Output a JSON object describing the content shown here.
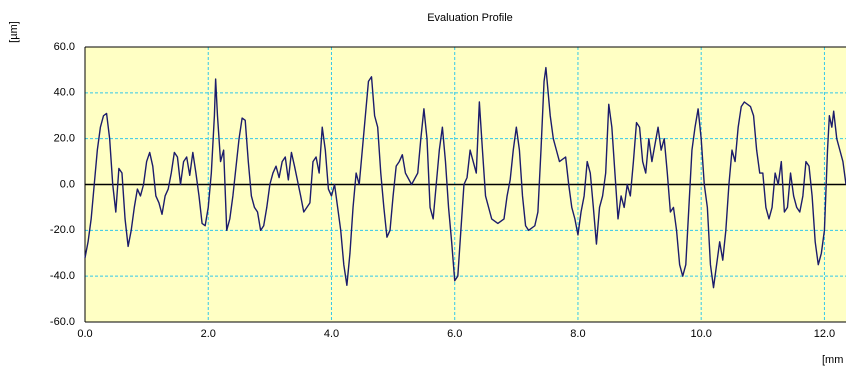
{
  "chart_data": {
    "type": "line",
    "title": "Evaluation Profile",
    "y_label": "[µm]",
    "x_label": "[mm",
    "x": [
      0.0,
      0.05,
      0.1,
      0.15,
      0.2,
      0.25,
      0.3,
      0.35,
      0.4,
      0.45,
      0.5,
      0.55,
      0.6,
      0.65,
      0.7,
      0.75,
      0.8,
      0.85,
      0.9,
      0.95,
      1.0,
      1.05,
      1.1,
      1.15,
      1.2,
      1.25,
      1.3,
      1.35,
      1.4,
      1.45,
      1.5,
      1.55,
      1.6,
      1.65,
      1.7,
      1.75,
      1.8,
      1.85,
      1.9,
      1.95,
      2.0,
      2.05,
      2.1,
      2.12,
      2.15,
      2.2,
      2.25,
      2.3,
      2.35,
      2.4,
      2.5,
      2.55,
      2.6,
      2.65,
      2.7,
      2.75,
      2.8,
      2.85,
      2.9,
      2.95,
      3.0,
      3.05,
      3.1,
      3.15,
      3.2,
      3.25,
      3.3,
      3.35,
      3.4,
      3.5,
      3.55,
      3.65,
      3.7,
      3.75,
      3.8,
      3.85,
      3.9,
      3.95,
      4.0,
      4.05,
      4.1,
      4.15,
      4.2,
      4.25,
      4.3,
      4.35,
      4.4,
      4.45,
      4.5,
      4.55,
      4.6,
      4.65,
      4.7,
      4.75,
      4.8,
      4.85,
      4.9,
      4.95,
      5.0,
      5.05,
      5.1,
      5.15,
      5.2,
      5.3,
      5.4,
      5.45,
      5.5,
      5.55,
      5.6,
      5.65,
      5.7,
      5.75,
      5.8,
      5.85,
      5.9,
      5.95,
      6.0,
      6.05,
      6.1,
      6.15,
      6.2,
      6.25,
      6.3,
      6.35,
      6.4,
      6.45,
      6.5,
      6.6,
      6.7,
      6.8,
      6.85,
      6.9,
      6.95,
      7.0,
      7.05,
      7.1,
      7.15,
      7.2,
      7.3,
      7.35,
      7.4,
      7.45,
      7.48,
      7.55,
      7.6,
      7.65,
      7.7,
      7.8,
      7.85,
      7.9,
      7.95,
      8.0,
      8.05,
      8.1,
      8.15,
      8.2,
      8.25,
      8.3,
      8.35,
      8.4,
      8.45,
      8.5,
      8.55,
      8.6,
      8.65,
      8.7,
      8.75,
      8.8,
      8.85,
      8.9,
      8.95,
      9.0,
      9.05,
      9.1,
      9.15,
      9.2,
      9.3,
      9.35,
      9.4,
      9.45,
      9.5,
      9.55,
      9.6,
      9.65,
      9.7,
      9.75,
      9.8,
      9.85,
      9.9,
      9.95,
      10.0,
      10.05,
      10.1,
      10.15,
      10.2,
      10.25,
      10.3,
      10.35,
      10.4,
      10.45,
      10.5,
      10.55,
      10.6,
      10.65,
      10.7,
      10.8,
      10.85,
      10.9,
      10.95,
      11.0,
      11.05,
      11.1,
      11.15,
      11.2,
      11.25,
      11.3,
      11.35,
      11.4,
      11.45,
      11.5,
      11.55,
      11.6,
      11.65,
      11.7,
      11.75,
      11.8,
      11.85,
      11.9,
      11.95,
      12.0,
      12.05,
      12.08,
      12.12,
      12.15,
      12.2,
      12.25,
      12.3,
      12.35
    ],
    "values": [
      -32,
      -25,
      -15,
      0,
      15,
      25,
      30,
      31,
      20,
      0,
      -12,
      7,
      5,
      -15,
      -27,
      -20,
      -10,
      -2,
      -5,
      0,
      10,
      14,
      8,
      -5,
      -8,
      -13,
      -5,
      -2,
      5,
      14,
      12,
      0,
      10,
      12,
      4,
      14,
      5,
      -5,
      -17,
      -18,
      -10,
      5,
      30,
      46,
      30,
      10,
      15,
      -20,
      -15,
      -5,
      20,
      29,
      28,
      10,
      -5,
      -10,
      -12,
      -20,
      -18,
      -10,
      0,
      5,
      8,
      3,
      10,
      12,
      2,
      14,
      8,
      -5,
      -12,
      -8,
      10,
      12,
      5,
      25,
      15,
      -2,
      -5,
      0,
      -10,
      -20,
      -35,
      -44,
      -30,
      -10,
      5,
      0,
      15,
      30,
      45,
      47,
      30,
      25,
      5,
      -10,
      -23,
      -20,
      -5,
      8,
      10,
      13,
      5,
      0,
      5,
      20,
      33,
      20,
      -10,
      -15,
      0,
      15,
      25,
      10,
      -10,
      -25,
      -42,
      -40,
      -20,
      0,
      3,
      15,
      10,
      5,
      36,
      15,
      -5,
      -15,
      -17,
      -15,
      -5,
      2,
      15,
      25,
      15,
      -5,
      -18,
      -20,
      -18,
      -12,
      15,
      45,
      51,
      30,
      20,
      15,
      10,
      12,
      0,
      -10,
      -15,
      -22,
      -12,
      -5,
      10,
      5,
      -10,
      -26,
      -10,
      -5,
      5,
      35,
      25,
      5,
      -15,
      -5,
      -10,
      0,
      -5,
      10,
      27,
      25,
      10,
      5,
      20,
      10,
      25,
      15,
      20,
      5,
      -12,
      -10,
      -20,
      -35,
      -40,
      -35,
      -10,
      15,
      25,
      33,
      20,
      0,
      -10,
      -35,
      -45,
      -35,
      -25,
      -33,
      -20,
      0,
      15,
      10,
      25,
      34,
      36,
      34,
      30,
      15,
      5,
      5,
      -10,
      -15,
      -10,
      5,
      0,
      10,
      -12,
      -10,
      5,
      -5,
      -10,
      -12,
      -5,
      10,
      8,
      -5,
      -25,
      -35,
      -30,
      -20,
      15,
      30,
      25,
      32,
      20,
      15,
      10,
      0
    ],
    "color": "#1c1c6b",
    "xlim": [
      0,
      12.35
    ],
    "ylim": [
      -60,
      60
    ],
    "xticks": [
      {
        "value": 0,
        "label": "0.0"
      },
      {
        "value": 2,
        "label": "2.0"
      },
      {
        "value": 4,
        "label": "4.0"
      },
      {
        "value": 6,
        "label": "6.0"
      },
      {
        "value": 8,
        "label": "8.0"
      },
      {
        "value": 10,
        "label": "10.0"
      },
      {
        "value": 12,
        "label": "12.0"
      }
    ],
    "yticks": [
      {
        "value": -60,
        "label": "-60.0"
      },
      {
        "value": -40,
        "label": "-40.0"
      },
      {
        "value": -20,
        "label": "-20.0"
      },
      {
        "value": 0,
        "label": "0.0"
      },
      {
        "value": 20,
        "label": "20.0"
      },
      {
        "value": 40,
        "label": "40.0"
      },
      {
        "value": 60,
        "label": "60.0"
      }
    ],
    "grid": true
  }
}
